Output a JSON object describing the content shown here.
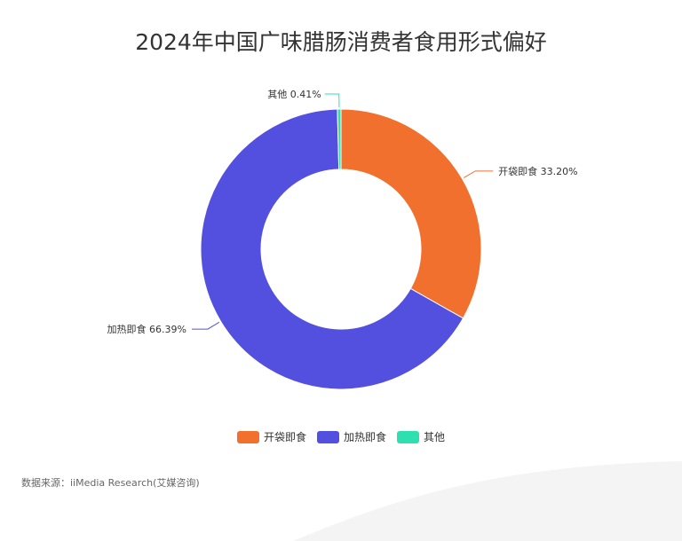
{
  "title": "2024年中国广味腊肠消费者食用形式偏好",
  "source": "数据来源：iiMedia Research(艾媒咨询)",
  "chart_data": {
    "type": "pie",
    "donut": true,
    "categories": [
      "开袋即食",
      "加热即食",
      "其他"
    ],
    "values": [
      33.2,
      66.39,
      0.41
    ],
    "colors": [
      "#f2702e",
      "#5350e0",
      "#2ee0b0"
    ],
    "data_labels": [
      "开袋即食 33.20%",
      "加热即食 66.39%",
      "其他 0.41%"
    ],
    "legend_position": "bottom-center"
  }
}
